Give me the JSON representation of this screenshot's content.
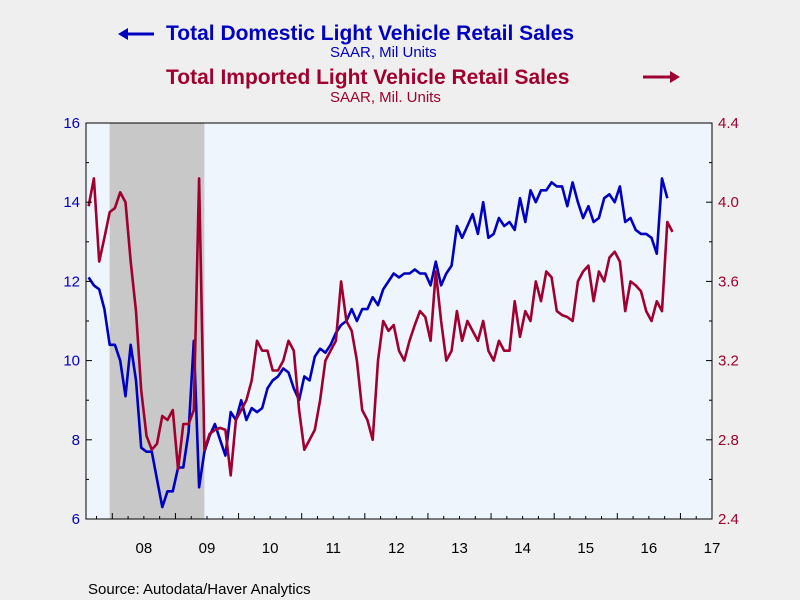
{
  "chart_data": {
    "type": "line",
    "source": "Source:  Autodata/Haver Analytics",
    "x_tick_labels": [
      "08",
      "09",
      "10",
      "11",
      "12",
      "13",
      "14",
      "15",
      "16",
      "17"
    ],
    "x_tick_years": [
      2008,
      2009,
      2010,
      2011,
      2012,
      2013,
      2014,
      2015,
      2016,
      2017
    ],
    "x_range": [
      "2007-08",
      "2017-06"
    ],
    "recession_shading": {
      "start": "2007-12",
      "end": "2009-06",
      "color": "#c8c8c8"
    },
    "grid": false,
    "plot_background": "#eef5fd",
    "left_axis": {
      "ylim": [
        6,
        16
      ],
      "ticks": [
        "6",
        "8",
        "10",
        "12",
        "14",
        "16"
      ],
      "color": "#0000c0"
    },
    "right_axis": {
      "ylim": [
        2.4,
        4.4
      ],
      "ticks": [
        "2.4",
        "2.8",
        "3.2",
        "3.6",
        "4.0",
        "4.4"
      ],
      "color": "#a00030"
    },
    "series": [
      {
        "name": "Total Domestic Light Vehicle Retail Sales",
        "unit": "SAAR, Mil Units",
        "axis": "left",
        "arrow": "left",
        "color": "#0000c0",
        "start": "2007-08",
        "values": [
          12.1,
          11.9,
          11.8,
          11.3,
          10.4,
          10.4,
          10.0,
          9.1,
          10.4,
          9.5,
          7.8,
          7.7,
          7.7,
          7.0,
          6.3,
          6.7,
          6.7,
          7.3,
          7.3,
          8.2,
          10.5,
          6.8,
          7.7,
          8.1,
          8.4,
          8.0,
          7.6,
          8.7,
          8.5,
          9.0,
          8.5,
          8.8,
          8.7,
          8.8,
          9.3,
          9.5,
          9.6,
          9.8,
          9.7,
          9.3,
          9.0,
          9.6,
          9.5,
          10.1,
          10.3,
          10.2,
          10.4,
          10.7,
          10.9,
          11.0,
          11.3,
          11.0,
          11.3,
          11.3,
          11.6,
          11.4,
          11.8,
          12.0,
          12.2,
          12.1,
          12.2,
          12.2,
          12.3,
          12.2,
          12.2,
          11.9,
          12.5,
          11.9,
          12.2,
          12.4,
          13.4,
          13.1,
          13.4,
          13.7,
          13.2,
          14.0,
          13.1,
          13.2,
          13.6,
          13.4,
          13.5,
          13.3,
          14.1,
          13.5,
          14.3,
          14.0,
          14.3,
          14.3,
          14.5,
          14.4,
          14.4,
          13.9,
          14.5,
          14.0,
          13.6,
          13.9,
          13.5,
          13.6,
          14.1,
          14.2,
          14.0,
          14.4,
          13.5,
          13.6,
          13.3,
          13.2,
          13.2,
          13.1,
          12.7,
          14.6,
          14.1
        ]
      },
      {
        "name": "Total Imported Light Vehicle Retail Sales",
        "unit": "SAAR, Mil. Units",
        "axis": "right",
        "arrow": "right",
        "color": "#a00030",
        "start": "2007-08",
        "values": [
          3.98,
          4.12,
          3.7,
          3.82,
          3.95,
          3.97,
          4.05,
          4.0,
          3.7,
          3.45,
          3.05,
          2.82,
          2.75,
          2.78,
          2.92,
          2.9,
          2.95,
          2.65,
          2.88,
          2.88,
          2.95,
          4.12,
          2.75,
          2.83,
          2.85,
          2.86,
          2.85,
          2.62,
          2.9,
          2.95,
          3.0,
          3.1,
          3.3,
          3.25,
          3.25,
          3.15,
          3.15,
          3.2,
          3.3,
          3.25,
          2.95,
          2.75,
          2.8,
          2.85,
          3.0,
          3.2,
          3.25,
          3.3,
          3.6,
          3.4,
          3.35,
          3.2,
          2.95,
          2.9,
          2.8,
          3.2,
          3.4,
          3.35,
          3.38,
          3.25,
          3.2,
          3.3,
          3.38,
          3.45,
          3.42,
          3.3,
          3.65,
          3.4,
          3.2,
          3.25,
          3.45,
          3.3,
          3.4,
          3.35,
          3.3,
          3.4,
          3.25,
          3.2,
          3.3,
          3.25,
          3.25,
          3.5,
          3.32,
          3.45,
          3.4,
          3.6,
          3.5,
          3.65,
          3.62,
          3.45,
          3.43,
          3.42,
          3.4,
          3.6,
          3.65,
          3.68,
          3.5,
          3.65,
          3.6,
          3.72,
          3.75,
          3.7,
          3.45,
          3.6,
          3.58,
          3.55,
          3.45,
          3.4,
          3.5,
          3.45,
          3.9,
          3.85
        ]
      }
    ]
  }
}
